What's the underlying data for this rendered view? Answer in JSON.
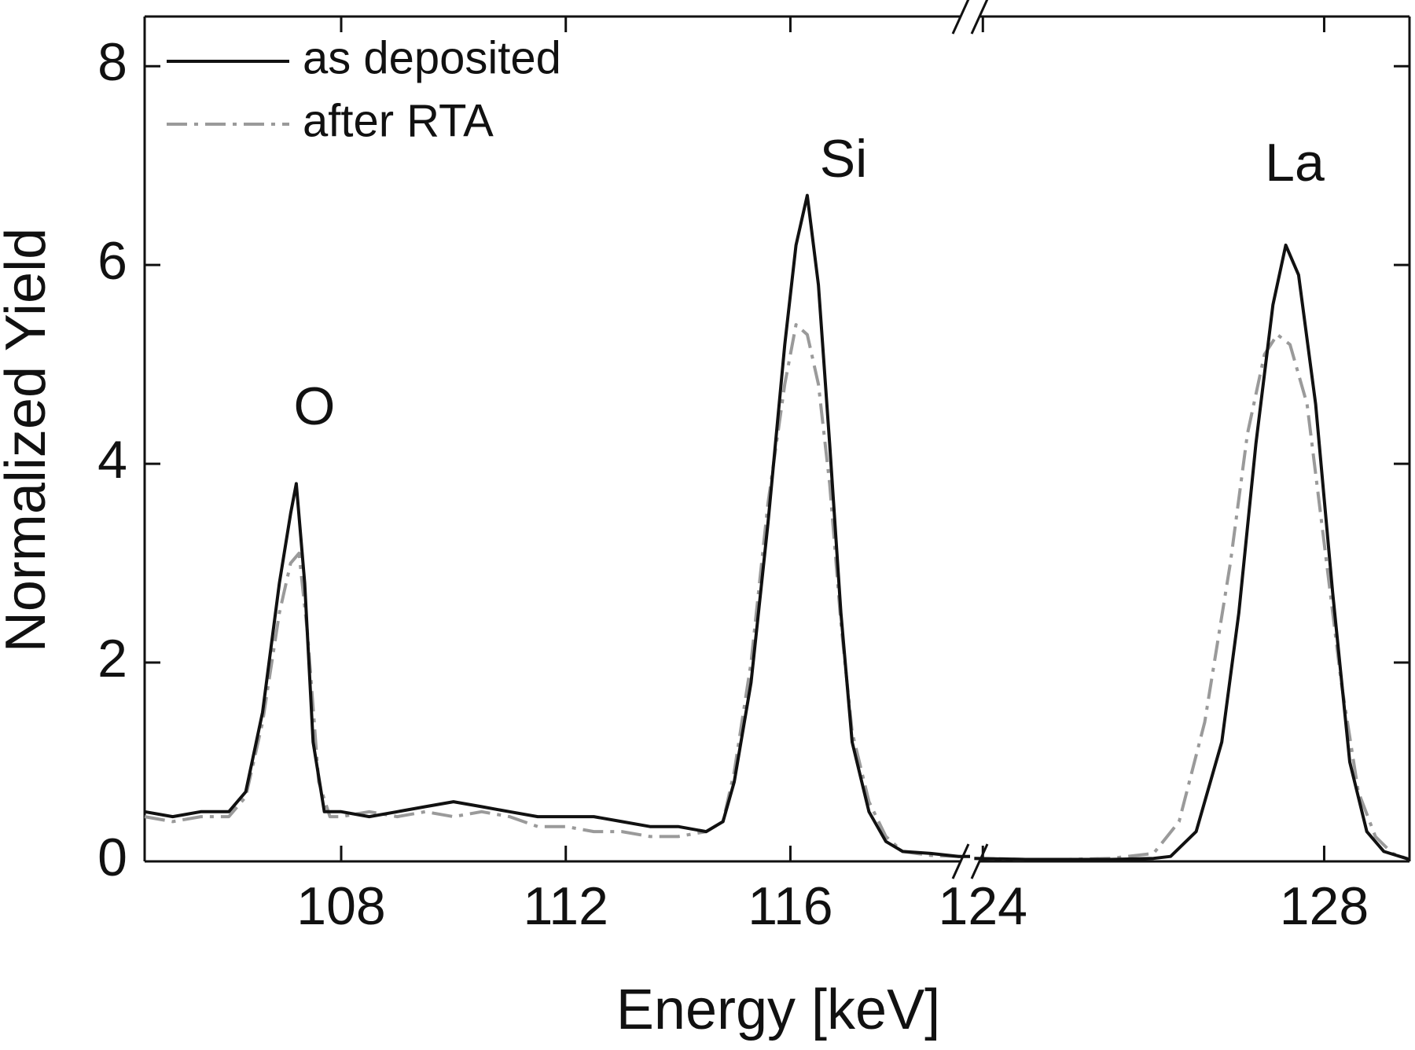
{
  "chart_data": {
    "type": "line",
    "x_label": "Energy [keV]",
    "y_label": "Normalized Yield",
    "ylim": [
      0,
      8.5
    ],
    "yticks": [
      0,
      2,
      4,
      6,
      8
    ],
    "x_segments": [
      {
        "xlim": [
          104.5,
          119.2
        ],
        "xticks": [
          108,
          112,
          116
        ]
      },
      {
        "xlim": [
          123.85,
          129
        ],
        "xticks": [
          124,
          128
        ]
      }
    ],
    "annotations": [
      "O",
      "Si",
      "La"
    ],
    "legend": "upper left",
    "grid": false,
    "series": [
      {
        "name": "as deposited",
        "color": "#111111",
        "dash": "solid",
        "x": [
          104.5,
          105,
          105.5,
          106,
          106.3,
          106.6,
          106.9,
          107.1,
          107.2,
          107.35,
          107.5,
          107.7,
          108,
          108.5,
          109,
          109.5,
          110,
          110.5,
          111,
          111.5,
          112,
          112.5,
          113,
          113.5,
          114,
          114.5,
          114.8,
          115,
          115.3,
          115.6,
          115.9,
          116.1,
          116.3,
          116.5,
          116.7,
          116.9,
          117.1,
          117.4,
          117.7,
          118,
          118.5,
          119,
          119.2,
          null,
          123.9,
          124.5,
          125,
          125.5,
          126,
          126.2,
          126.5,
          126.8,
          127,
          127.2,
          127.4,
          127.55,
          127.7,
          127.9,
          128.1,
          128.3,
          128.5,
          128.7,
          129
        ],
        "values": [
          0.5,
          0.45,
          0.5,
          0.5,
          0.7,
          1.5,
          2.8,
          3.5,
          3.8,
          2.8,
          1.2,
          0.5,
          0.5,
          0.45,
          0.5,
          0.55,
          0.6,
          0.55,
          0.5,
          0.45,
          0.45,
          0.45,
          0.4,
          0.35,
          0.35,
          0.3,
          0.4,
          0.8,
          1.8,
          3.4,
          5.2,
          6.2,
          6.7,
          5.8,
          4.2,
          2.5,
          1.2,
          0.5,
          0.2,
          0.1,
          0.08,
          0.05,
          0.05,
          null,
          0.03,
          0.02,
          0.02,
          0.02,
          0.03,
          0.05,
          0.3,
          1.2,
          2.5,
          4.2,
          5.6,
          6.2,
          5.9,
          4.6,
          2.7,
          1.0,
          0.3,
          0.1,
          0.02
        ]
      },
      {
        "name": "after RTA",
        "color": "#9a9a9a",
        "dash": "dash-dot",
        "x": [
          104.5,
          105,
          105.5,
          106,
          106.3,
          106.6,
          106.9,
          107.1,
          107.25,
          107.4,
          107.6,
          107.8,
          108,
          108.5,
          109,
          109.5,
          110,
          110.5,
          111,
          111.5,
          112,
          112.5,
          113,
          113.5,
          114,
          114.5,
          114.8,
          115,
          115.3,
          115.6,
          115.9,
          116.1,
          116.3,
          116.5,
          116.7,
          116.9,
          117.1,
          117.4,
          117.7,
          118,
          118.5,
          119,
          119.2,
          null,
          123.9,
          124.5,
          125,
          125.5,
          126,
          126.3,
          126.6,
          126.9,
          127.1,
          127.3,
          127.45,
          127.6,
          127.8,
          128,
          128.2,
          128.4,
          128.6,
          128.8,
          129
        ],
        "values": [
          0.45,
          0.4,
          0.45,
          0.45,
          0.65,
          1.4,
          2.5,
          3.0,
          3.1,
          2.3,
          0.8,
          0.45,
          0.45,
          0.5,
          0.45,
          0.5,
          0.45,
          0.5,
          0.45,
          0.35,
          0.35,
          0.3,
          0.3,
          0.25,
          0.25,
          0.3,
          0.4,
          0.9,
          2.0,
          3.6,
          4.8,
          5.4,
          5.3,
          4.8,
          3.8,
          2.4,
          1.3,
          0.6,
          0.25,
          0.1,
          0.06,
          0.05,
          0.05,
          null,
          0.03,
          0.02,
          0.02,
          0.03,
          0.08,
          0.4,
          1.4,
          3.0,
          4.3,
          5.1,
          5.3,
          5.2,
          4.6,
          3.2,
          1.8,
          0.7,
          0.25,
          0.08,
          0.02
        ]
      }
    ]
  }
}
